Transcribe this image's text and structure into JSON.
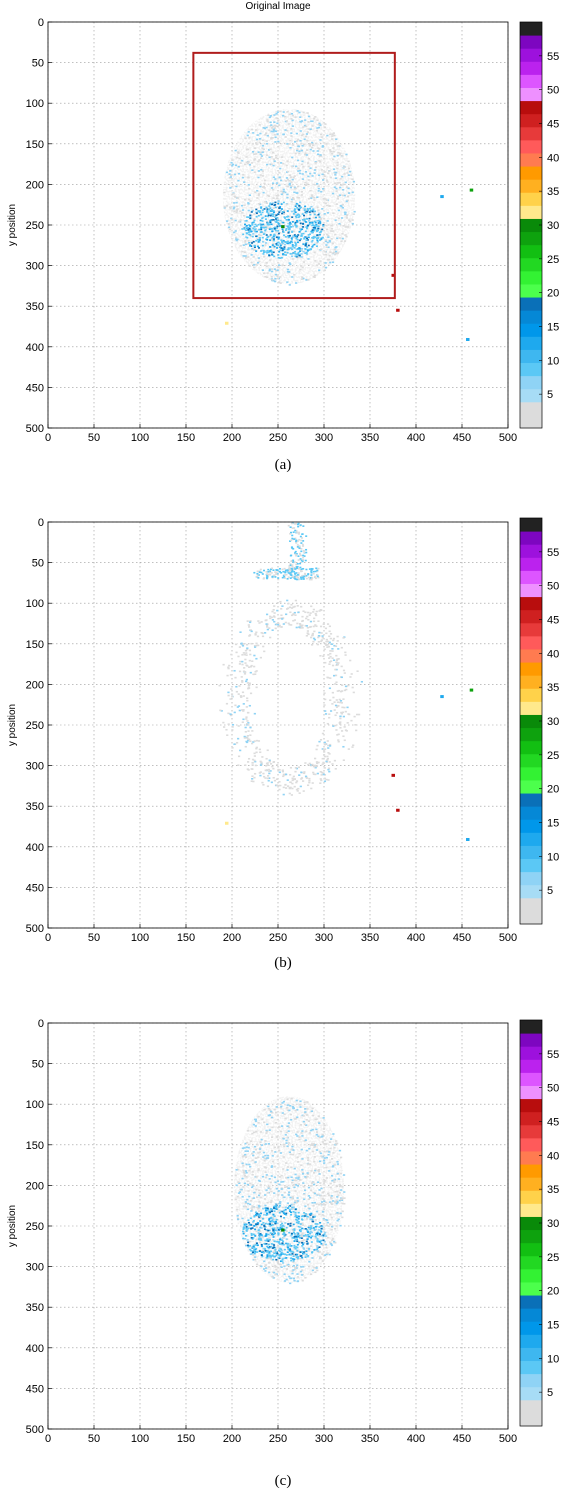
{
  "colorbar_colors": [
    "#dcdcdc",
    "#dcdcdc",
    "#a7dcf5",
    "#8fd3f5",
    "#5bc8f5",
    "#3eb7f0",
    "#1ea9ee",
    "#0097ea",
    "#0588d6",
    "#0a70b8",
    "#4cff4c",
    "#33f233",
    "#22d822",
    "#12bf12",
    "#0ea20e",
    "#098a09",
    "#ffe98c",
    "#ffd24a",
    "#ffb020",
    "#ff9a00",
    "#ff7b50",
    "#ff5a5a",
    "#e73a3a",
    "#cf2020",
    "#b80d0d",
    "#ee90ff",
    "#dd55ff",
    "#bb22ee",
    "#9d11dd",
    "#7d06c0",
    "#222222"
  ],
  "figure": {
    "panels": [
      {
        "id": "a",
        "caption": "(a)",
        "title": "Original Image",
        "ylabel": "y position"
      },
      {
        "id": "b",
        "caption": "(b)",
        "title": "",
        "ylabel": "y position"
      },
      {
        "id": "c",
        "caption": "(c)",
        "title": "",
        "ylabel": "y position"
      }
    ]
  },
  "chart_data": [
    {
      "type": "heatmap",
      "title": "Original Image",
      "xlabel": "",
      "ylabel": "y position",
      "xlim": [
        0,
        500
      ],
      "ylim": [
        0,
        500
      ],
      "y_inverted": true,
      "grid": true,
      "x_ticks": [
        0,
        50,
        100,
        150,
        200,
        250,
        300,
        350,
        400,
        450,
        500
      ],
      "y_ticks": [
        0,
        50,
        100,
        150,
        200,
        250,
        300,
        350,
        400,
        450,
        500
      ],
      "colorbar": {
        "range": [
          0,
          60
        ],
        "ticks": [
          5,
          10,
          15,
          20,
          25,
          30,
          35,
          40,
          45,
          50,
          55
        ]
      },
      "annotations": [
        {
          "type": "rectangle",
          "x": [
            158,
            377
          ],
          "y": [
            38,
            340
          ],
          "color": "#b01c1c"
        }
      ],
      "regions": [
        {
          "kind": "blob",
          "cx": 262,
          "cy": 215,
          "rx": 72,
          "ry": 108,
          "value": 4
        },
        {
          "kind": "core",
          "cx": 255,
          "cy": 255,
          "rx": 45,
          "ry": 35,
          "value": 14
        },
        {
          "kind": "spot",
          "x": 255,
          "y": 252,
          "value": 30
        },
        {
          "kind": "spot",
          "x": 460,
          "y": 207,
          "value": 28
        },
        {
          "kind": "spot",
          "x": 428,
          "y": 215,
          "value": 12
        },
        {
          "kind": "spot",
          "x": 456,
          "y": 391,
          "value": 12
        },
        {
          "kind": "spot",
          "x": 194,
          "y": 371,
          "value": 32
        },
        {
          "kind": "spot",
          "x": 375,
          "y": 312,
          "value": 48
        },
        {
          "kind": "spot",
          "x": 380,
          "y": 355,
          "value": 48
        }
      ]
    },
    {
      "type": "heatmap",
      "title": "",
      "xlabel": "",
      "ylabel": "y position",
      "xlim": [
        0,
        500
      ],
      "ylim": [
        0,
        500
      ],
      "y_inverted": true,
      "grid": true,
      "x_ticks": [
        0,
        50,
        100,
        150,
        200,
        250,
        300,
        350,
        400,
        450,
        500
      ],
      "y_ticks": [
        0,
        50,
        100,
        150,
        200,
        250,
        300,
        350,
        400,
        450,
        500
      ],
      "colorbar": {
        "range": [
          0,
          60
        ],
        "ticks": [
          5,
          10,
          15,
          20,
          25,
          30,
          35,
          40,
          45,
          50,
          55
        ]
      },
      "annotations": [],
      "regions": [
        {
          "kind": "ring",
          "cx": 262,
          "cy": 215,
          "rx": 78,
          "ry": 115,
          "value": 4
        },
        {
          "kind": "streak",
          "cx": 270,
          "cy": 35,
          "rx": 10,
          "ry": 35,
          "value": 12
        },
        {
          "kind": "streak",
          "cx": 258,
          "cy": 63,
          "rx": 35,
          "ry": 7,
          "value": 12
        },
        {
          "kind": "spot",
          "x": 460,
          "y": 207,
          "value": 28
        },
        {
          "kind": "spot",
          "x": 428,
          "y": 215,
          "value": 12
        },
        {
          "kind": "spot",
          "x": 456,
          "y": 391,
          "value": 12
        },
        {
          "kind": "spot",
          "x": 194,
          "y": 371,
          "value": 32
        },
        {
          "kind": "spot",
          "x": 375,
          "y": 312,
          "value": 48
        },
        {
          "kind": "spot",
          "x": 380,
          "y": 355,
          "value": 48
        }
      ]
    },
    {
      "type": "heatmap",
      "title": "",
      "xlabel": "",
      "ylabel": "y position",
      "xlim": [
        0,
        500
      ],
      "ylim": [
        0,
        500
      ],
      "y_inverted": true,
      "grid": true,
      "x_ticks": [
        0,
        50,
        100,
        150,
        200,
        250,
        300,
        350,
        400,
        450,
        500
      ],
      "y_ticks": [
        0,
        50,
        100,
        150,
        200,
        250,
        300,
        350,
        400,
        450,
        500
      ],
      "colorbar": {
        "range": [
          0,
          60
        ],
        "ticks": [
          5,
          10,
          15,
          20,
          25,
          30,
          35,
          40,
          45,
          50,
          55
        ]
      },
      "annotations": [],
      "regions": [
        {
          "kind": "blob",
          "cx": 262,
          "cy": 205,
          "rx": 60,
          "ry": 115,
          "value": 4
        },
        {
          "kind": "core",
          "cx": 255,
          "cy": 258,
          "rx": 45,
          "ry": 35,
          "value": 14
        },
        {
          "kind": "spot",
          "x": 255,
          "y": 255,
          "value": 30
        }
      ]
    }
  ]
}
